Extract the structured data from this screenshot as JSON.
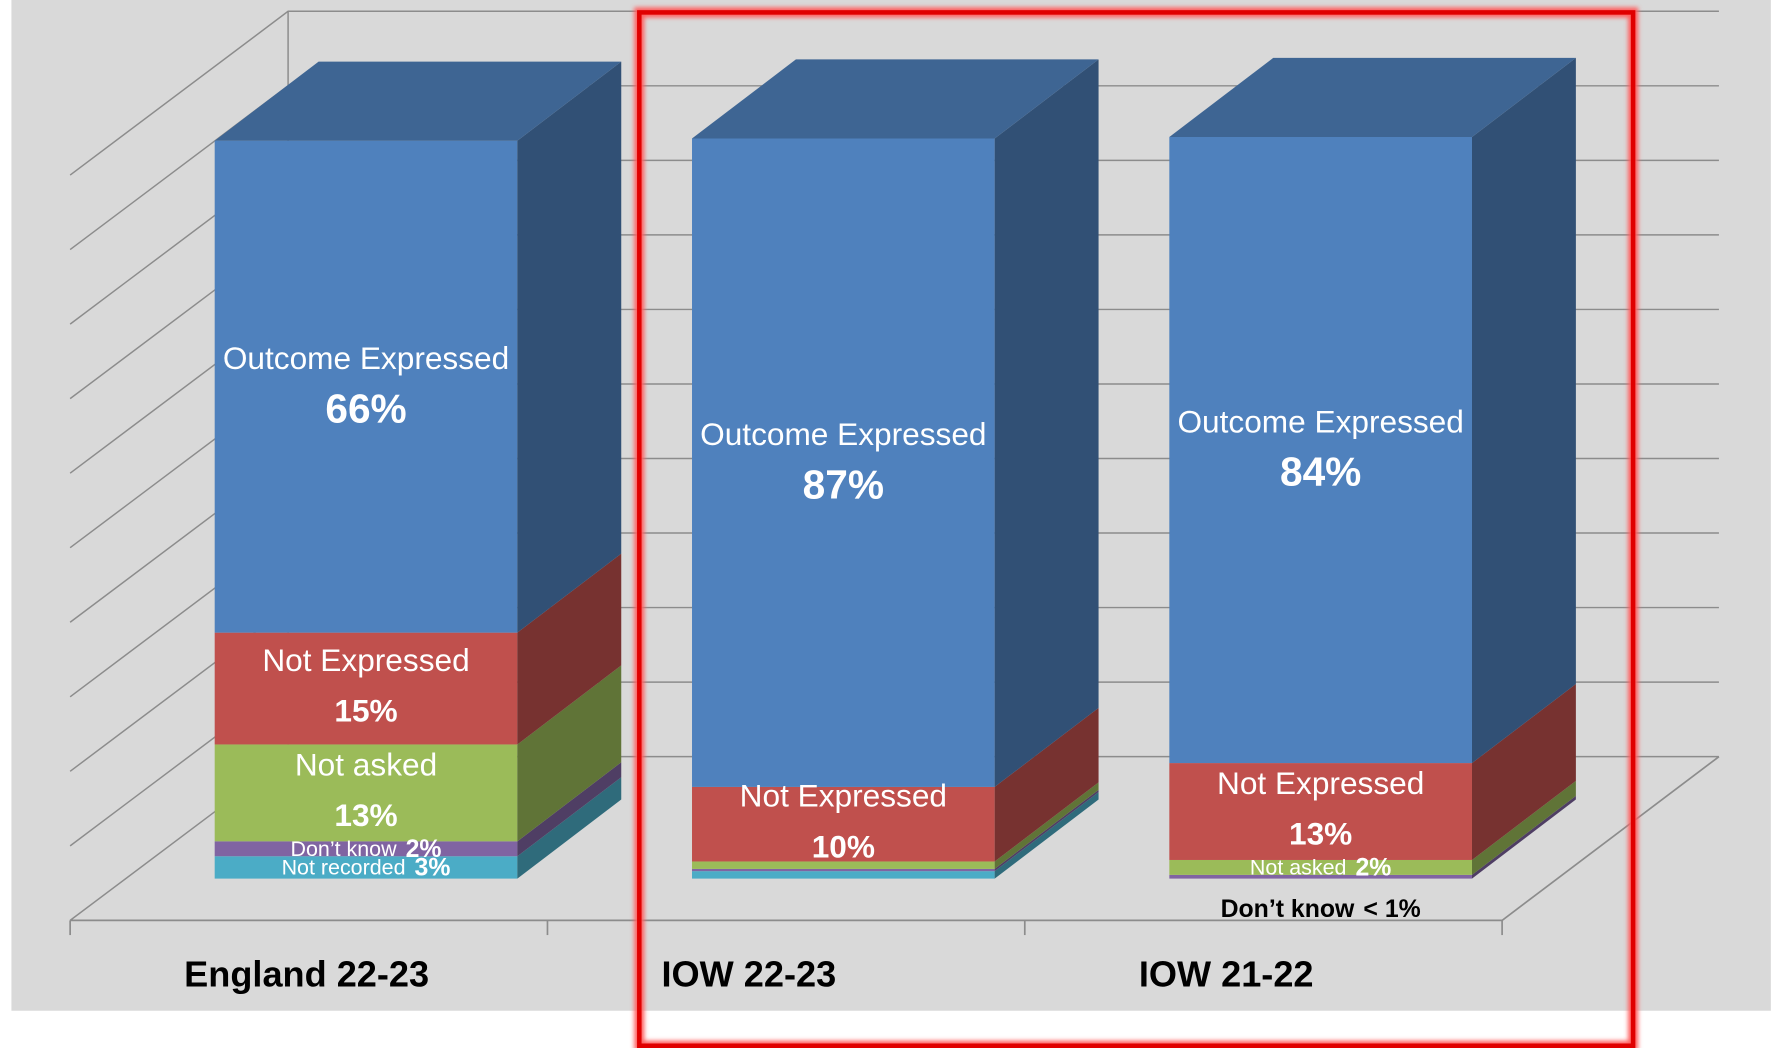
{
  "chart_data": {
    "type": "bar3d_stacked",
    "categories": [
      "England 22-23",
      "IOW 22-23",
      "IOW 21-22"
    ],
    "series": [
      {
        "name": "Outcome Expressed",
        "color": "#4f81bd",
        "values": [
          66,
          87,
          84
        ],
        "value_labels": [
          "66%",
          "87%",
          "84%"
        ]
      },
      {
        "name": "Not Expressed",
        "color": "#c0504d",
        "values": [
          15,
          10,
          13
        ],
        "value_labels": [
          "15%",
          "10%",
          "13%"
        ]
      },
      {
        "name": "Not asked",
        "color": "#9bbb59",
        "values": [
          13,
          1,
          2
        ],
        "value_labels": [
          "13%",
          null,
          "2%"
        ]
      },
      {
        "name": "Don’t know",
        "color": "#8064a2",
        "values": [
          2,
          0.3,
          0.5
        ],
        "value_labels": [
          "2%",
          null,
          "< 1%"
        ]
      },
      {
        "name": "Not recorded",
        "color": "#4bacc6",
        "values": [
          3,
          1,
          0
        ],
        "value_labels": [
          "3%",
          null,
          null
        ]
      }
    ],
    "ylim": [
      0,
      100
    ],
    "yticks": [
      0,
      10,
      20,
      30,
      40,
      50,
      60,
      70,
      80,
      90,
      100
    ],
    "grid": true
  }
}
